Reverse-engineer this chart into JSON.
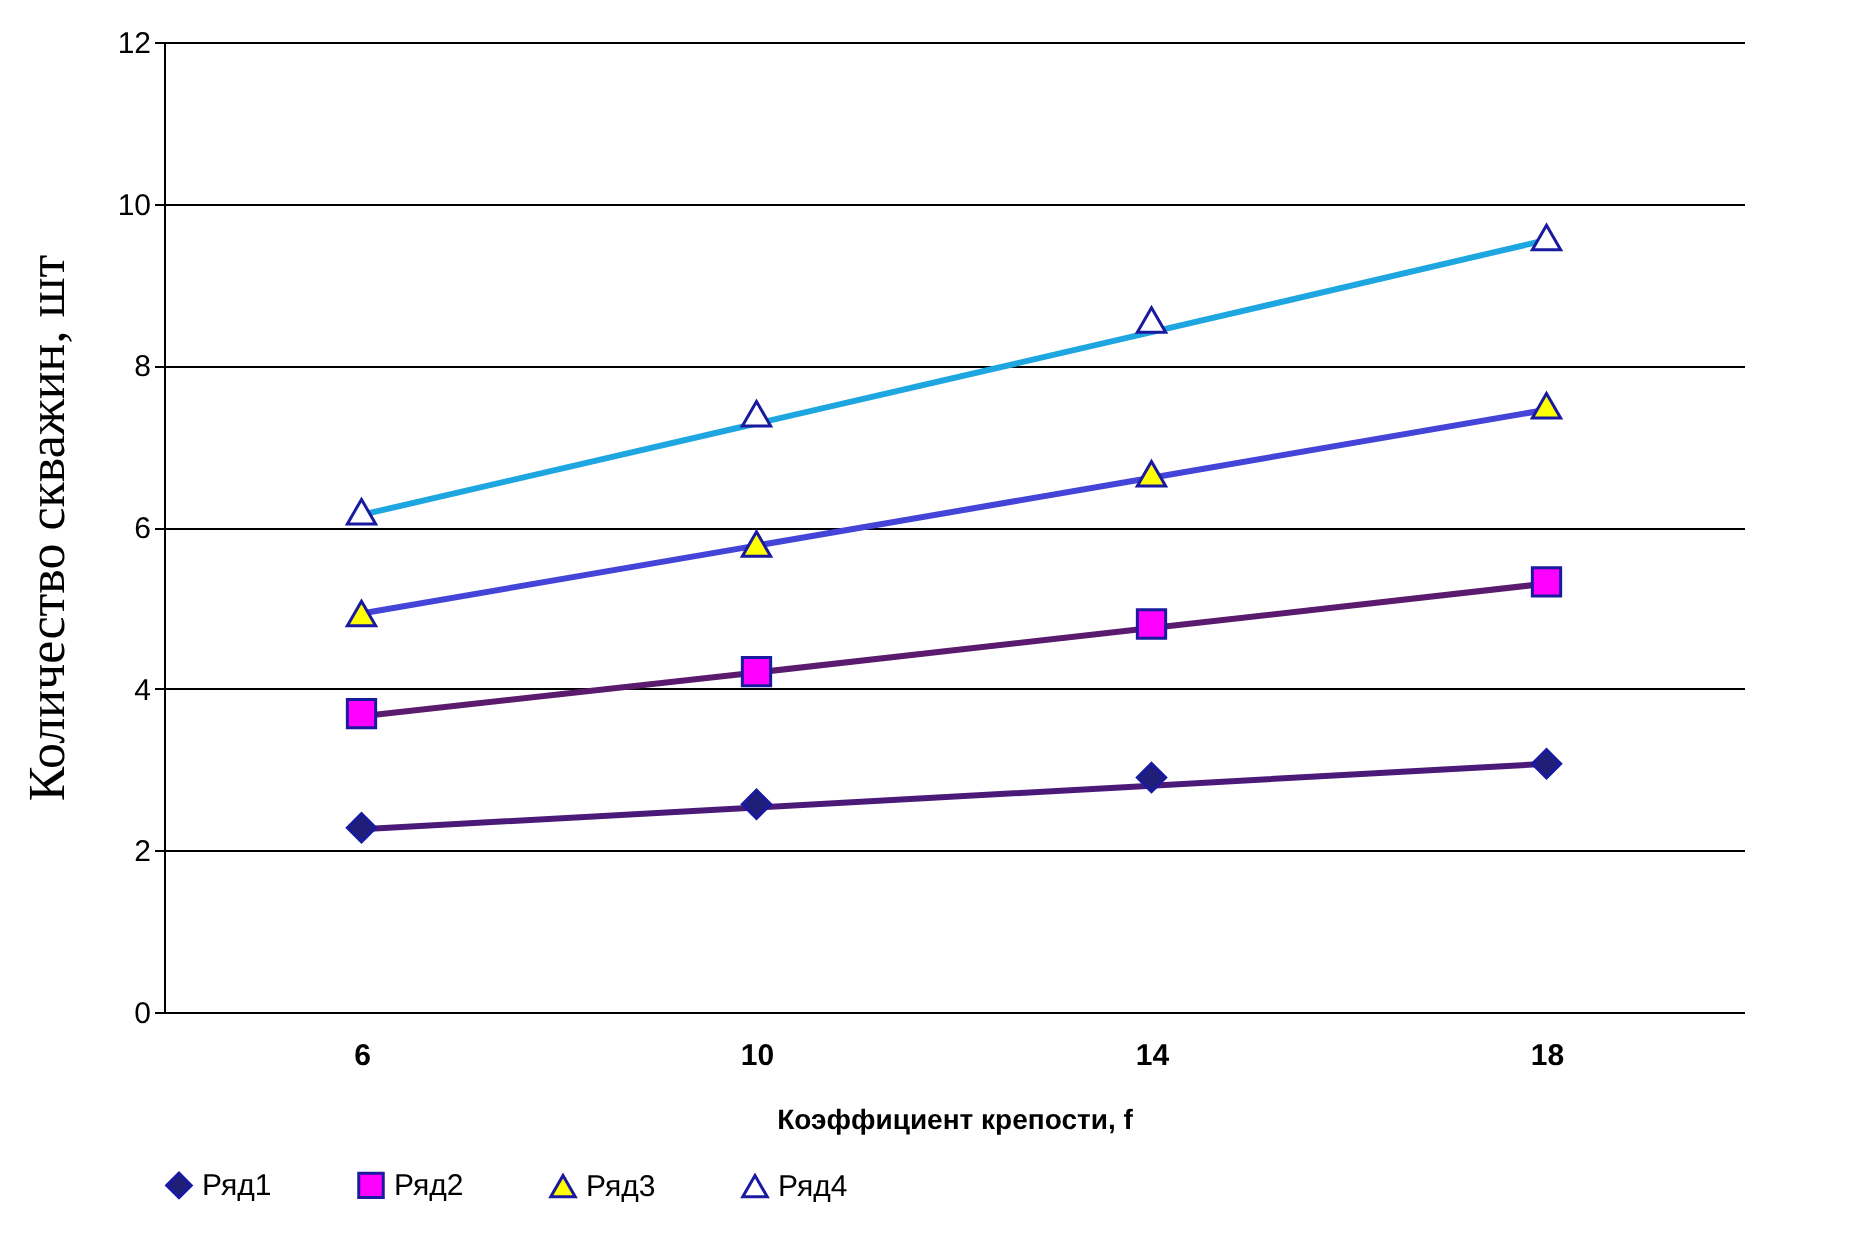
{
  "chart_data": {
    "type": "scatter",
    "xlabel": "Коэффициент крепости, f",
    "ylabel": "Количество скважин, шт",
    "categories": [
      "6",
      "10",
      "14",
      "18"
    ],
    "ylim": [
      0,
      12
    ],
    "yticks": [
      0,
      2,
      4,
      6,
      8,
      10,
      12
    ],
    "grid": "y",
    "legend": "bottom",
    "series": [
      {
        "name": "Ряд1",
        "marker": "diamond",
        "color": "#1f1f7a",
        "values": [
          2.28,
          2.57,
          2.9,
          3.07
        ]
      },
      {
        "name": "Ряд2",
        "marker": "square",
        "color": "#ff00ff",
        "values": [
          3.69,
          4.21,
          4.8,
          5.32
        ]
      },
      {
        "name": "Ряд3",
        "marker": "triangle",
        "color": "#ffff00",
        "values": [
          4.93,
          5.79,
          6.66,
          7.5
        ]
      },
      {
        "name": "Ряд4",
        "marker": "triangle",
        "color": "#ffffff",
        "values": [
          6.19,
          7.4,
          8.56,
          9.58
        ]
      },
      {
        "type": "line",
        "color": "#4b1a78",
        "values": [
          2.26,
          2.53,
          2.8,
          3.07
        ]
      },
      {
        "type": "line",
        "color": "#5a1a6e",
        "values": [
          3.66,
          4.2,
          4.75,
          5.3
        ]
      },
      {
        "type": "line",
        "color": "#4444d8",
        "values": [
          4.93,
          5.77,
          6.61,
          7.45
        ]
      },
      {
        "type": "line",
        "color": "#1ea6e0",
        "values": [
          6.15,
          7.28,
          8.41,
          9.55
        ]
      }
    ]
  }
}
